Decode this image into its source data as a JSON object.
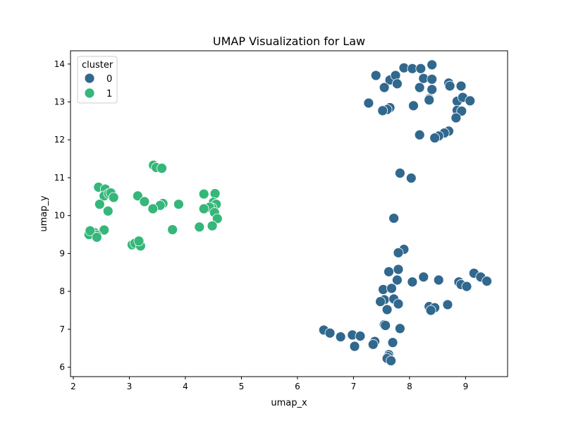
{
  "chart_data": {
    "type": "scatter",
    "title": "UMAP Visualization for Law",
    "xlabel": "umap_x",
    "ylabel": "umap_y",
    "xlim": [
      1.95,
      9.75
    ],
    "ylim": [
      5.75,
      14.35
    ],
    "xticks": [
      2,
      3,
      4,
      5,
      6,
      7,
      8,
      9
    ],
    "yticks": [
      6,
      7,
      8,
      9,
      10,
      11,
      12,
      13,
      14
    ],
    "grid": false,
    "legend": {
      "title": "cluster",
      "placement": "top-left"
    },
    "series": [
      {
        "name": "0",
        "color": "#31688e",
        "points": [
          [
            7.9,
            13.9
          ],
          [
            8.05,
            13.88
          ],
          [
            8.2,
            13.88
          ],
          [
            8.4,
            13.98
          ],
          [
            7.4,
            13.7
          ],
          [
            7.65,
            13.58
          ],
          [
            7.75,
            13.7
          ],
          [
            7.78,
            13.48
          ],
          [
            7.55,
            13.38
          ],
          [
            8.25,
            13.62
          ],
          [
            8.4,
            13.6
          ],
          [
            8.7,
            13.5
          ],
          [
            8.72,
            13.42
          ],
          [
            8.92,
            13.42
          ],
          [
            8.18,
            13.38
          ],
          [
            8.4,
            13.33
          ],
          [
            8.35,
            13.08
          ],
          [
            8.35,
            13.05
          ],
          [
            7.27,
            12.97
          ],
          [
            7.65,
            12.85
          ],
          [
            7.6,
            12.8
          ],
          [
            7.52,
            12.77
          ],
          [
            8.07,
            12.9
          ],
          [
            8.85,
            13.02
          ],
          [
            8.95,
            13.12
          ],
          [
            9.08,
            13.03
          ],
          [
            8.85,
            12.78
          ],
          [
            8.93,
            12.76
          ],
          [
            8.83,
            12.58
          ],
          [
            8.7,
            12.23
          ],
          [
            8.62,
            12.18
          ],
          [
            8.52,
            12.1
          ],
          [
            8.45,
            12.05
          ],
          [
            8.18,
            12.13
          ],
          [
            7.83,
            11.12
          ],
          [
            8.03,
            10.99
          ],
          [
            7.72,
            9.93
          ],
          [
            7.9,
            9.11
          ],
          [
            7.8,
            9.02
          ],
          [
            7.63,
            8.52
          ],
          [
            7.8,
            8.58
          ],
          [
            8.25,
            8.38
          ],
          [
            8.05,
            8.25
          ],
          [
            8.52,
            8.3
          ],
          [
            7.78,
            8.3
          ],
          [
            9.15,
            8.48
          ],
          [
            9.27,
            8.38
          ],
          [
            9.38,
            8.27
          ],
          [
            8.88,
            8.25
          ],
          [
            8.92,
            8.18
          ],
          [
            9.02,
            8.13
          ],
          [
            7.53,
            8.05
          ],
          [
            7.68,
            8.08
          ],
          [
            7.55,
            7.78
          ],
          [
            7.48,
            7.73
          ],
          [
            7.72,
            7.8
          ],
          [
            7.8,
            7.67
          ],
          [
            7.6,
            7.52
          ],
          [
            8.35,
            7.6
          ],
          [
            8.45,
            7.57
          ],
          [
            8.38,
            7.5
          ],
          [
            8.68,
            7.65
          ],
          [
            7.55,
            7.12
          ],
          [
            7.57,
            7.1
          ],
          [
            7.83,
            7.02
          ],
          [
            6.47,
            6.98
          ],
          [
            6.58,
            6.9
          ],
          [
            6.77,
            6.8
          ],
          [
            6.98,
            6.85
          ],
          [
            7.12,
            6.82
          ],
          [
            7.38,
            6.68
          ],
          [
            7.35,
            6.6
          ],
          [
            7.02,
            6.55
          ],
          [
            7.7,
            6.65
          ],
          [
            7.63,
            6.33
          ],
          [
            7.62,
            6.28
          ],
          [
            7.6,
            6.23
          ],
          [
            7.67,
            6.17
          ]
        ]
      },
      {
        "name": "1",
        "color": "#35b779",
        "points": [
          [
            2.45,
            10.75
          ],
          [
            2.57,
            10.7
          ],
          [
            2.55,
            10.52
          ],
          [
            2.63,
            10.58
          ],
          [
            2.67,
            10.6
          ],
          [
            2.72,
            10.48
          ],
          [
            2.47,
            10.3
          ],
          [
            2.62,
            10.12
          ],
          [
            2.55,
            9.62
          ],
          [
            2.38,
            9.55
          ],
          [
            2.42,
            9.48
          ],
          [
            2.28,
            9.5
          ],
          [
            2.3,
            9.6
          ],
          [
            2.42,
            9.43
          ],
          [
            3.43,
            11.33
          ],
          [
            3.48,
            11.27
          ],
          [
            3.58,
            11.25
          ],
          [
            3.15,
            10.52
          ],
          [
            3.27,
            10.37
          ],
          [
            3.6,
            10.32
          ],
          [
            3.55,
            10.27
          ],
          [
            3.42,
            10.18
          ],
          [
            3.88,
            10.3
          ],
          [
            3.05,
            9.23
          ],
          [
            3.1,
            9.27
          ],
          [
            3.2,
            9.2
          ],
          [
            3.17,
            9.33
          ],
          [
            3.77,
            9.63
          ],
          [
            4.33,
            10.57
          ],
          [
            4.53,
            10.58
          ],
          [
            4.5,
            10.35
          ],
          [
            4.55,
            10.3
          ],
          [
            4.48,
            10.2
          ],
          [
            4.43,
            10.22
          ],
          [
            4.33,
            10.18
          ],
          [
            4.52,
            10.08
          ],
          [
            4.57,
            9.92
          ],
          [
            4.25,
            9.7
          ],
          [
            4.48,
            9.73
          ]
        ]
      }
    ]
  }
}
